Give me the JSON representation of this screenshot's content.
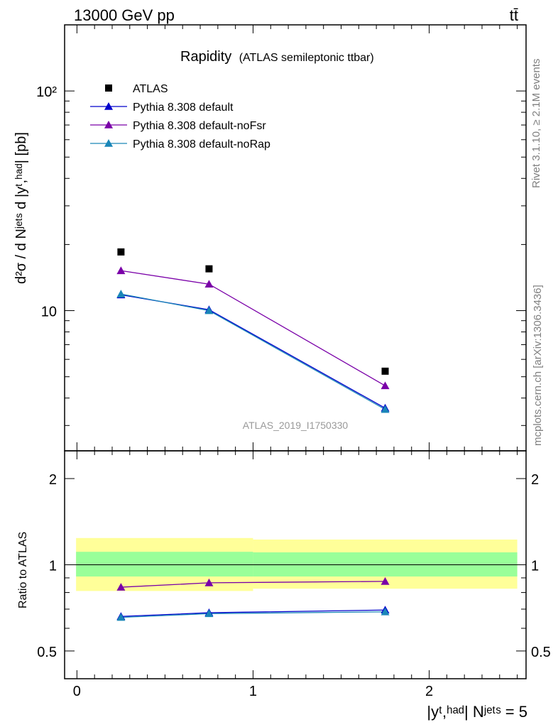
{
  "header": {
    "left": "13000 GeV pp",
    "right": "tt̄"
  },
  "side": {
    "rivet": "Rivet 3.1.10, ≥ 2.1M events",
    "mcplots": "mcplots.cern.ch [arXiv:1306.3436]"
  },
  "title": {
    "main": "Rapidity",
    "sub": "(ATLAS semileptonic ttbar)"
  },
  "watermark": "ATLAS_2019_I1750330",
  "axes": {
    "ylabel_top": "d²σ / d Nʲᵉᵗˢ d |yᵗ,ʰᵃᵈ| [pb]",
    "ylabel_bottom": "Ratio to ATLAS",
    "xlabel": "|yᵗ,ʰᵃᵈ| Nʲᵉᵗˢ = 5",
    "xticks": [
      "0",
      "1",
      "2"
    ],
    "yticks_top": [
      "10",
      "10²"
    ],
    "yticks_bottom": [
      "0.5",
      "1",
      "2"
    ]
  },
  "legend": [
    {
      "label": "ATLAS",
      "color": "#000000",
      "marker": "square"
    },
    {
      "label": "Pythia 8.308 default",
      "color": "#0000cc",
      "marker": "triangle"
    },
    {
      "label": "Pythia 8.308 default-noFsr",
      "color": "#7a00a8",
      "marker": "triangle"
    },
    {
      "label": "Pythia 8.308 default-noRap",
      "color": "#1a86b8",
      "marker": "triangle"
    }
  ],
  "chart_data": {
    "type": "line",
    "xlim": [
      -0.07,
      2.55
    ],
    "ylim_top": [
      2.3,
      200
    ],
    "ylim_bottom": [
      0.4,
      2.5
    ],
    "log_y_top": true,
    "log_y_bottom": true,
    "x": [
      0.25,
      0.75,
      1.75
    ],
    "data": {
      "name": "ATLAS",
      "values": [
        18.5,
        15.5,
        5.3
      ]
    },
    "series": [
      {
        "name": "Pythia 8.308 default",
        "color": "#0000cc",
        "values": [
          11.8,
          10.1,
          3.6
        ],
        "ratio": [
          0.66,
          0.68,
          0.695
        ]
      },
      {
        "name": "Pythia 8.308 default-noFsr",
        "color": "#7a00a8",
        "values": [
          15.2,
          13.2,
          4.55
        ],
        "ratio": [
          0.835,
          0.865,
          0.875
        ]
      },
      {
        "name": "Pythia 8.308 default-noRap",
        "color": "#1a86b8",
        "values": [
          11.9,
          10.0,
          3.55
        ],
        "ratio": [
          0.655,
          0.675,
          0.685
        ]
      }
    ],
    "bands": [
      {
        "x": [
          -0.005,
          1.0
        ],
        "yellow": [
          0.81,
          1.24
        ],
        "green": [
          0.91,
          1.11
        ]
      },
      {
        "x": [
          1.0,
          2.5
        ],
        "yellow": [
          0.825,
          1.225
        ],
        "green": [
          0.91,
          1.105
        ]
      }
    ]
  }
}
